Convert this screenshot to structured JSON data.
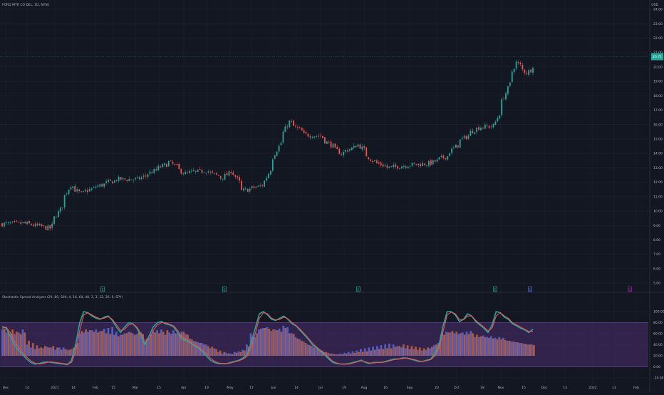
{
  "chart_data": [
    {
      "type": "candlestick",
      "title": "FORD MTR CO DEL, 1D, NYSE",
      "currency": "USD",
      "last_price": "20.71",
      "ylim": [
        4.0,
        25.0
      ],
      "y_ticks": [
        "24.00",
        "23.00",
        "22.00",
        "21.00",
        "20.00",
        "19.00",
        "18.00",
        "17.00",
        "16.00",
        "15.00",
        "14.00",
        "13.00",
        "12.00",
        "11.00",
        "10.00",
        "9.00",
        "8.00",
        "7.00",
        "6.00",
        "5.00"
      ],
      "x_ticks": [
        "Dec",
        "14",
        "2021",
        "14",
        "Feb",
        "15",
        "Mar",
        "15",
        "Apr",
        "19",
        "May",
        "17",
        "Jun",
        "14",
        "Jul",
        "19",
        "Aug",
        "16",
        "Sep",
        "20",
        "Oct",
        "18",
        "Nov",
        "15",
        "Dec",
        "13",
        "2022",
        "13",
        "Feb"
      ],
      "approx_close_path": [
        [
          "2020-11-30",
          9.1
        ],
        [
          "2020-12-14",
          9.15
        ],
        [
          "2020-12-31",
          8.8
        ],
        [
          "2021-01-07",
          10.1
        ],
        [
          "2021-01-14",
          11.8
        ],
        [
          "2021-01-21",
          11.2
        ],
        [
          "2021-02-01",
          11.7
        ],
        [
          "2021-02-15",
          12.2
        ],
        [
          "2021-03-01",
          12.2
        ],
        [
          "2021-03-15",
          13.0
        ],
        [
          "2021-03-22",
          13.4
        ],
        [
          "2021-04-01",
          12.6
        ],
        [
          "2021-04-15",
          12.8
        ],
        [
          "2021-04-26",
          12.3
        ],
        [
          "2021-05-03",
          12.8
        ],
        [
          "2021-05-10",
          11.4
        ],
        [
          "2021-05-24",
          11.8
        ],
        [
          "2021-06-01",
          14.0
        ],
        [
          "2021-06-10",
          16.2
        ],
        [
          "2021-06-21",
          15.3
        ],
        [
          "2021-07-01",
          15.2
        ],
        [
          "2021-07-15",
          14.0
        ],
        [
          "2021-07-27",
          14.6
        ],
        [
          "2021-08-05",
          13.5
        ],
        [
          "2021-08-16",
          13.0
        ],
        [
          "2021-08-30",
          13.2
        ],
        [
          "2021-09-13",
          13.3
        ],
        [
          "2021-09-24",
          13.8
        ],
        [
          "2021-10-04",
          14.9
        ],
        [
          "2021-10-15",
          15.8
        ],
        [
          "2021-10-26",
          15.9
        ],
        [
          "2021-11-03",
          18.2
        ],
        [
          "2021-11-10",
          20.3
        ],
        [
          "2021-11-17",
          19.6
        ],
        [
          "2021-11-22",
          20.1
        ]
      ],
      "earnings_markers": [
        "E",
        "E",
        "E",
        "E",
        "D",
        "D"
      ]
    },
    {
      "type": "oscillator",
      "title": "Stochastic Spread Analyzer (20, 80, 500, 4, 16, 64, 40, 3, 3, 12, 26, 9, SPY)",
      "ylim": [
        -30,
        110
      ],
      "y_ticks": [
        "100.00",
        "80.00",
        "60.00",
        "40.00",
        "20.00",
        "0.00",
        "-20.00"
      ],
      "band": [
        0,
        80
      ],
      "series": [
        {
          "name": "",
          "color": "#26a69a",
          "values": [
            73,
            70,
            55,
            40,
            30,
            22,
            14,
            8,
            5,
            6,
            8,
            9,
            8,
            7,
            6,
            5,
            4,
            12,
            40,
            80,
            100,
            98,
            92,
            88,
            86,
            90,
            92,
            84,
            72,
            62,
            72,
            80,
            78,
            70,
            56,
            40,
            56,
            72,
            80,
            82,
            78,
            76,
            72,
            62,
            50,
            48,
            44,
            38,
            34,
            28,
            20,
            12,
            8,
            6,
            6,
            6,
            8,
            10,
            12,
            16,
            22,
            44,
            70,
            96,
            100,
            94,
            86,
            84,
            88,
            92,
            86,
            78,
            74,
            66,
            58,
            50,
            40,
            34,
            28,
            22,
            14,
            8,
            6,
            5,
            5,
            6,
            8,
            10,
            12,
            8,
            6,
            8,
            8,
            8,
            10,
            12,
            14,
            14,
            16,
            16,
            14,
            12,
            10,
            10,
            12,
            14,
            24,
            40,
            74,
            100,
            100,
            94,
            82,
            86,
            96,
            92,
            82,
            76,
            70,
            62,
            76,
            100,
            98,
            90,
            86,
            78,
            74,
            70,
            67,
            62,
            68
          ]
        },
        {
          "name": "",
          "color": "#ef5350",
          "values": [
            70,
            72,
            62,
            46,
            36,
            26,
            18,
            11,
            7,
            5,
            6,
            8,
            9,
            8,
            7,
            6,
            5,
            8,
            28,
            66,
            94,
            98,
            94,
            90,
            87,
            88,
            91,
            86,
            76,
            66,
            68,
            76,
            78,
            72,
            60,
            46,
            50,
            66,
            76,
            80,
            80,
            77,
            74,
            66,
            54,
            50,
            46,
            40,
            36,
            30,
            24,
            16,
            10,
            7,
            6,
            6,
            7,
            9,
            11,
            14,
            19,
            36,
            60,
            88,
            98,
            96,
            88,
            85,
            86,
            90,
            87,
            80,
            75,
            68,
            60,
            52,
            43,
            36,
            30,
            24,
            17,
            10,
            7,
            5,
            5,
            5,
            7,
            9,
            11,
            9,
            7,
            7,
            8,
            8,
            9,
            11,
            13,
            14,
            15,
            16,
            15,
            13,
            11,
            10,
            11,
            13,
            20,
            34,
            64,
            94,
            99,
            96,
            86,
            85,
            92,
            92,
            84,
            78,
            72,
            65,
            70,
            92,
            98,
            92,
            88,
            80,
            76,
            72,
            68,
            64,
            64
          ]
        }
      ],
      "histogram": [
        {
          "color": "#5b6bd6",
          "values": [
            70,
            62,
            60,
            58,
            62,
            70,
            30,
            22,
            18,
            20,
            20,
            24,
            22,
            16,
            22,
            22,
            16,
            18,
            30,
            60,
            62,
            64,
            68,
            70,
            66,
            72,
            74,
            76,
            64,
            56,
            60,
            64,
            60,
            58,
            62,
            38,
            48,
            66,
            68,
            70,
            56,
            62,
            68,
            60,
            64,
            58,
            46,
            40,
            36,
            34,
            30,
            20,
            20,
            10,
            6,
            8,
            6,
            10,
            12,
            16,
            30,
            60,
            50,
            70,
            74,
            76,
            66,
            70,
            72,
            80,
            76,
            60,
            50,
            44,
            38,
            30,
            26,
            20,
            16,
            10,
            8,
            6,
            4,
            6,
            8,
            10,
            12,
            14,
            18,
            20,
            22,
            24,
            26,
            28,
            30,
            32,
            30,
            26,
            22,
            20,
            18,
            18,
            16,
            14,
            16,
            20,
            28,
            34,
            60,
            64,
            62,
            60,
            58,
            62,
            64,
            66,
            50,
            50,
            54,
            50,
            52,
            48,
            50,
            48,
            40,
            38,
            36,
            34,
            32,
            30,
            30
          ]
        },
        {
          "color": "#c7633c",
          "values": [
            72,
            66,
            70,
            64,
            58,
            62,
            40,
            34,
            28,
            22,
            26,
            22,
            26,
            22,
            16,
            18,
            16,
            22,
            34,
            66,
            70,
            68,
            64,
            62,
            66,
            60,
            58,
            56,
            52,
            56,
            60,
            62,
            56,
            62,
            58,
            46,
            56,
            62,
            60,
            64,
            68,
            58,
            60,
            58,
            64,
            56,
            44,
            38,
            34,
            30,
            26,
            24,
            18,
            14,
            10,
            6,
            4,
            8,
            10,
            14,
            24,
            50,
            60,
            72,
            74,
            72,
            70,
            68,
            64,
            74,
            60,
            58,
            46,
            40,
            34,
            28,
            22,
            18,
            14,
            10,
            6,
            4,
            4,
            4,
            6,
            6,
            8,
            10,
            10,
            12,
            14,
            16,
            18,
            18,
            20,
            20,
            24,
            26,
            30,
            28,
            26,
            24,
            22,
            20,
            22,
            24,
            30,
            36,
            56,
            62,
            66,
            64,
            60,
            56,
            58,
            60,
            56,
            52,
            50,
            48,
            46,
            44,
            44,
            42,
            40,
            38,
            36,
            34,
            32,
            30,
            28
          ]
        }
      ]
    }
  ],
  "colors": {
    "background": "#131722",
    "grid": "#1f2330",
    "up": "#26a69a",
    "down": "#ef5350",
    "band_fill": "#4a2d6e",
    "text": "#b2b5be"
  }
}
